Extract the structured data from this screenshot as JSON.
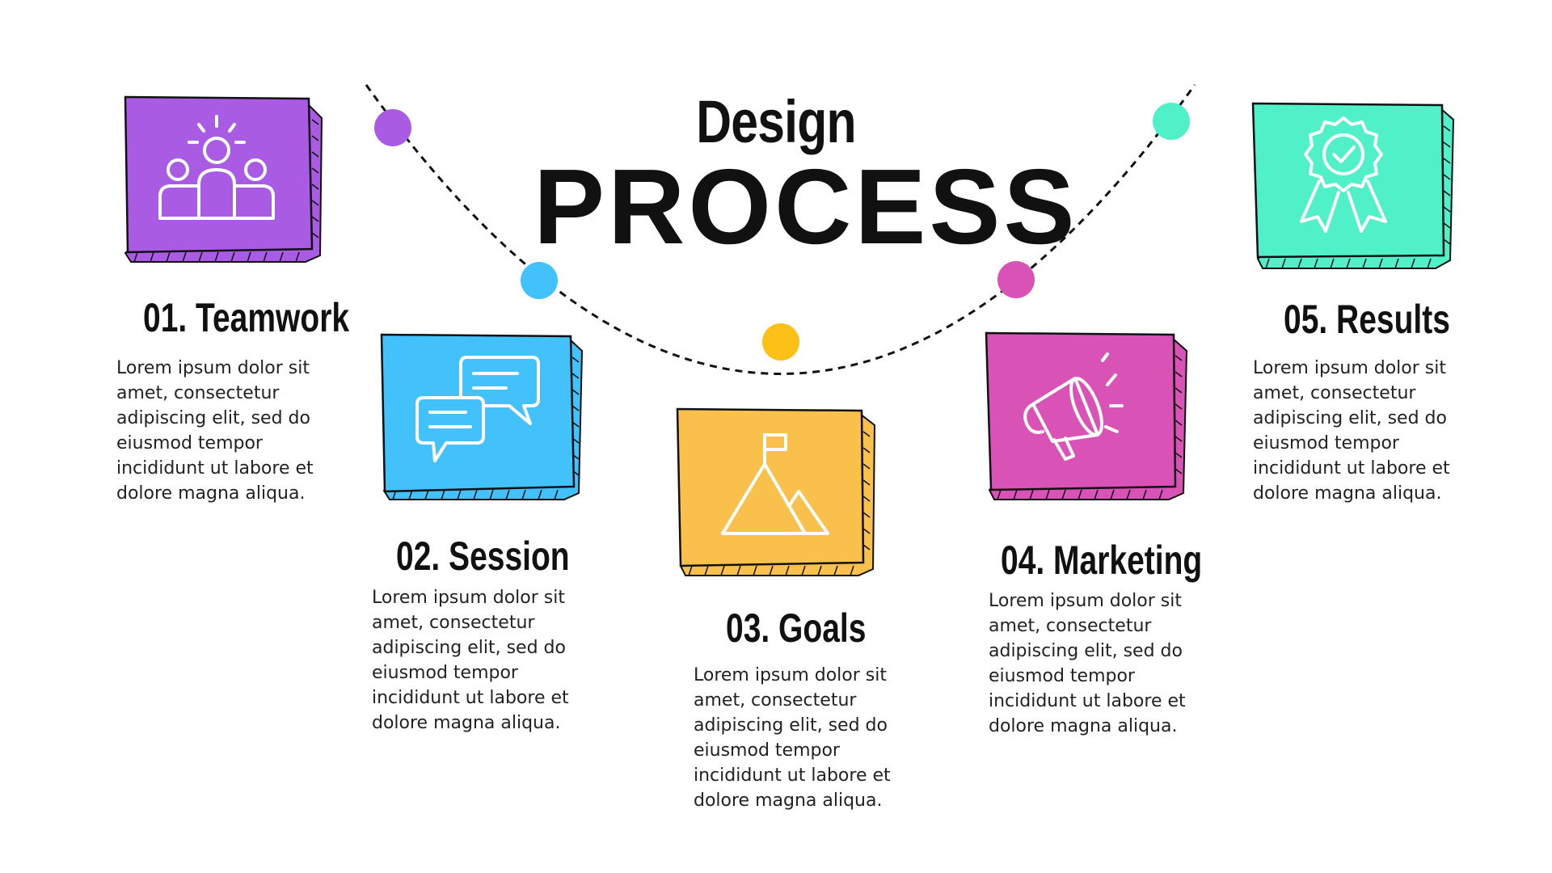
{
  "title": {
    "line1": "Design",
    "line2": "PROCESS"
  },
  "colors": {
    "ink": "#111111",
    "dashed": "#111111"
  },
  "steps": [
    {
      "title": "01. Teamwork",
      "desc": "Lorem ipsum dolor sit amet, consectetur adipiscing elit, sed do eiusmod tempor incididunt ut labore et dolore magna aliqua.",
      "color": "#A95BE3",
      "icon": "team-icon"
    },
    {
      "title": "02. Session",
      "desc": "Lorem ipsum dolor sit amet, consectetur adipiscing elit, sed do eiusmod tempor incididunt ut labore et dolore magna aliqua.",
      "color": "#42C1FB",
      "icon": "chat-bubbles-icon"
    },
    {
      "title": "03. Goals",
      "desc": "Lorem ipsum dolor sit amet, consectetur adipiscing elit, sed do eiusmod tempor incididunt ut labore et dolore magna aliqua.",
      "color": "#F9C14B",
      "icon": "mountain-flag-icon"
    },
    {
      "title": "04. Marketing",
      "desc": "Lorem ipsum dolor sit amet, consectetur adipiscing elit, sed do eiusmod tempor incididunt ut labore et dolore magna aliqua.",
      "color": "#D952B6",
      "icon": "megaphone-icon"
    },
    {
      "title": "05. Results",
      "desc": "Lorem ipsum dolor sit amet, consectetur adipiscing elit, sed do eiusmod tempor incididunt ut labore et dolore magna aliqua.",
      "color": "#50F0C9",
      "icon": "award-badge-icon"
    }
  ],
  "arc_dots": [
    {
      "color": "#A95BE3"
    },
    {
      "color": "#42C1FB"
    },
    {
      "color": "#FDC017"
    },
    {
      "color": "#D952B6"
    },
    {
      "color": "#50F0C9"
    }
  ]
}
